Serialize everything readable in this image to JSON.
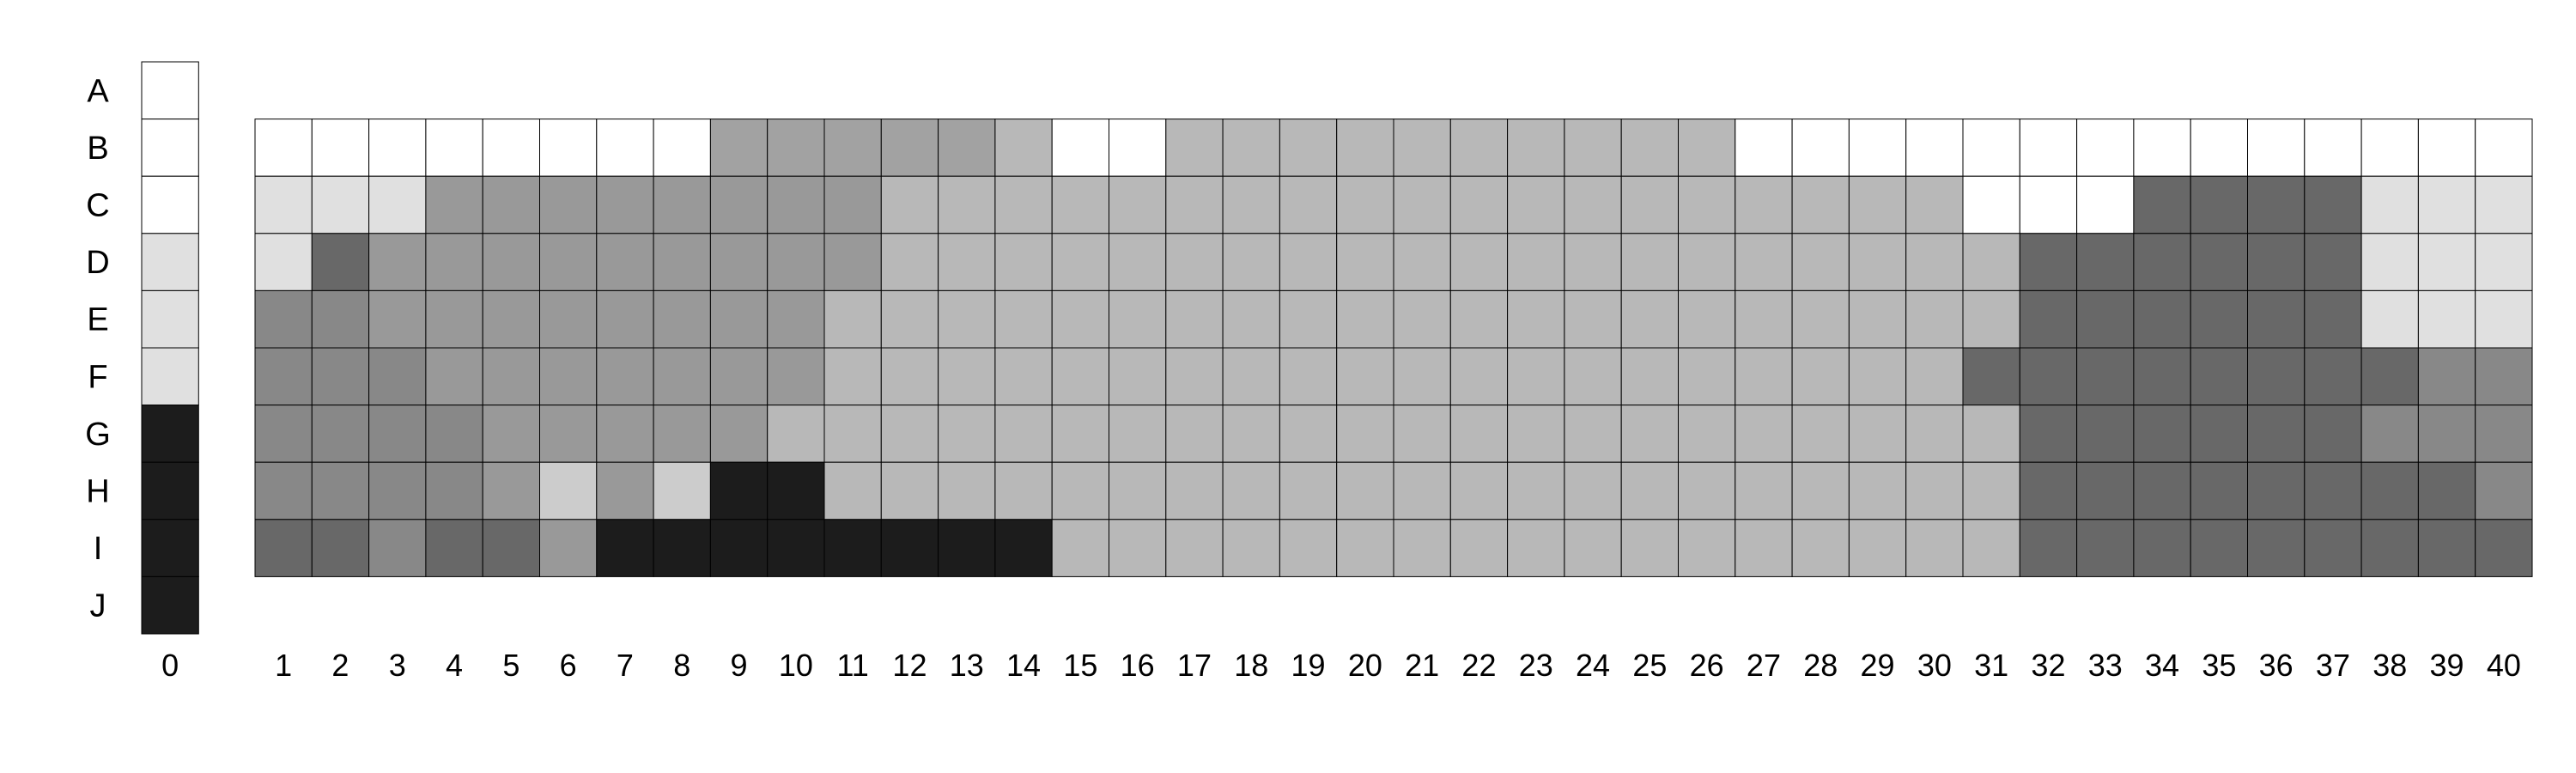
{
  "chart_data": {
    "type": "heatmap",
    "title": "",
    "xlabel": "",
    "ylabel": "",
    "rows": [
      "A",
      "B",
      "C",
      "D",
      "E",
      "F",
      "G",
      "H",
      "I",
      "J"
    ],
    "columns": [
      "0",
      "1",
      "2",
      "3",
      "4",
      "5",
      "6",
      "7",
      "8",
      "9",
      "10",
      "11",
      "12",
      "13",
      "14",
      "15",
      "16",
      "17",
      "18",
      "19",
      "20",
      "21",
      "22",
      "23",
      "24",
      "25",
      "26",
      "27",
      "28",
      "29",
      "30",
      "31",
      "32",
      "33",
      "34",
      "35",
      "36",
      "37",
      "38",
      "39",
      "40"
    ],
    "legend_column": {
      "label": "0",
      "levels": [
        0,
        0,
        0,
        1,
        1,
        1,
        9,
        9,
        9,
        9
      ]
    },
    "palette": [
      "#ffffff",
      "#e0e0e0",
      "#cccccc",
      "#bcbcbc",
      "#b8b8b8",
      "#a2a2a2",
      "#999999",
      "#888888",
      "#686868",
      "#1c1c1c"
    ],
    "grid_rows": [
      "B",
      "C",
      "D",
      "E",
      "F",
      "G",
      "H",
      "I"
    ],
    "levels": [
      [
        0,
        0,
        0,
        0,
        0,
        0,
        0,
        0,
        5,
        5,
        5,
        5,
        5,
        4,
        0,
        0,
        4,
        4,
        4,
        4,
        4,
        4,
        4,
        4,
        4,
        4,
        0,
        0,
        0,
        0,
        0,
        0,
        0,
        0,
        0,
        0,
        0,
        0,
        0,
        0
      ],
      [
        1,
        1,
        1,
        6,
        6,
        6,
        6,
        6,
        6,
        6,
        6,
        4,
        4,
        4,
        4,
        4,
        4,
        4,
        4,
        4,
        4,
        4,
        4,
        4,
        4,
        4,
        4,
        4,
        4,
        4,
        0,
        0,
        0,
        8,
        8,
        8,
        8,
        1,
        1,
        1
      ],
      [
        1,
        8,
        6,
        6,
        6,
        6,
        6,
        6,
        6,
        6,
        6,
        4,
        4,
        4,
        4,
        4,
        4,
        4,
        4,
        4,
        4,
        4,
        4,
        4,
        4,
        4,
        4,
        4,
        4,
        4,
        4,
        8,
        8,
        8,
        8,
        8,
        8,
        1,
        1,
        1
      ],
      [
        7,
        7,
        6,
        6,
        6,
        6,
        6,
        6,
        6,
        6,
        4,
        4,
        4,
        4,
        4,
        4,
        4,
        4,
        4,
        4,
        4,
        4,
        4,
        4,
        4,
        4,
        4,
        4,
        4,
        4,
        4,
        8,
        8,
        8,
        8,
        8,
        8,
        1,
        1,
        1
      ],
      [
        7,
        7,
        7,
        6,
        6,
        6,
        6,
        6,
        6,
        6,
        4,
        4,
        4,
        4,
        4,
        4,
        4,
        4,
        4,
        4,
        4,
        4,
        4,
        4,
        4,
        4,
        4,
        4,
        4,
        4,
        8,
        8,
        8,
        8,
        8,
        8,
        8,
        8,
        7,
        7
      ],
      [
        7,
        7,
        7,
        7,
        6,
        6,
        6,
        6,
        6,
        4,
        4,
        4,
        4,
        4,
        4,
        4,
        4,
        4,
        4,
        4,
        4,
        4,
        4,
        4,
        4,
        4,
        4,
        4,
        4,
        4,
        4,
        8,
        8,
        8,
        8,
        8,
        8,
        7,
        7,
        7
      ],
      [
        7,
        7,
        7,
        7,
        6,
        2,
        6,
        2,
        9,
        9,
        4,
        4,
        4,
        4,
        4,
        4,
        4,
        4,
        4,
        4,
        4,
        4,
        4,
        4,
        4,
        4,
        4,
        4,
        4,
        4,
        4,
        8,
        8,
        8,
        8,
        8,
        8,
        8,
        8,
        7
      ],
      [
        8,
        8,
        7,
        8,
        8,
        6,
        9,
        9,
        9,
        9,
        9,
        9,
        9,
        9,
        4,
        4,
        4,
        4,
        4,
        4,
        4,
        4,
        4,
        4,
        4,
        4,
        4,
        4,
        4,
        4,
        4,
        8,
        8,
        8,
        8,
        8,
        8,
        8,
        8,
        8
      ]
    ]
  }
}
